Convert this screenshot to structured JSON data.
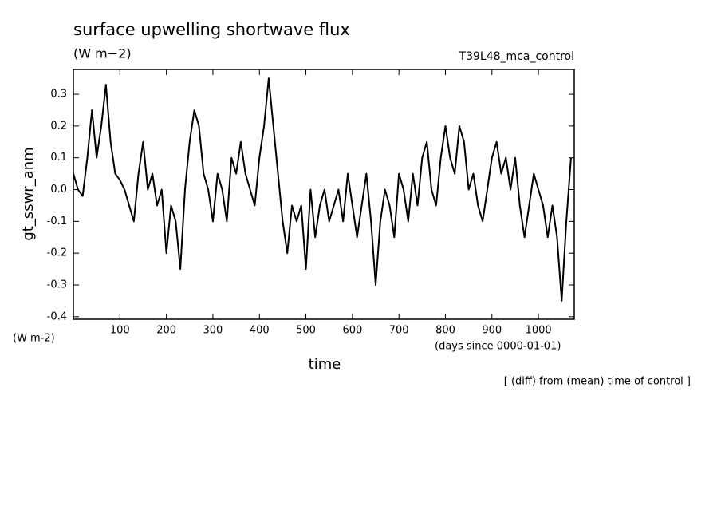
{
  "chart_data": {
    "type": "line",
    "title": "surface upwelling shortwave flux",
    "subtitle": "(W m−2)",
    "experiment": "T39L48_mca_control",
    "y_label": "gt_sswr_anm",
    "y_unit": "(W m-2)",
    "x_label": "time",
    "x_unit": "(days since 0000-01-01)",
    "note": "[ (diff) from (mean) time of control ]",
    "xlim": [
      0,
      1077
    ],
    "ylim": [
      -0.408,
      0.378
    ],
    "xticks": [
      100,
      200,
      300,
      400,
      500,
      600,
      700,
      800,
      900,
      1000
    ],
    "yticks": [
      -0.4,
      -0.3,
      -0.2,
      -0.1,
      {
        "value": 0,
        "label": "0.0"
      },
      0.1,
      0.2,
      0.3
    ],
    "series": [
      {
        "color": "#000000",
        "x": [
          0,
          10,
          20,
          30,
          40,
          50,
          60,
          70,
          80,
          90,
          100,
          110,
          120,
          130,
          140,
          150,
          160,
          170,
          180,
          190,
          200,
          210,
          220,
          230,
          240,
          250,
          260,
          270,
          280,
          290,
          300,
          310,
          320,
          330,
          340,
          350,
          360,
          370,
          380,
          390,
          400,
          410,
          420,
          430,
          440,
          450,
          460,
          470,
          480,
          490,
          500,
          510,
          520,
          530,
          540,
          550,
          560,
          570,
          580,
          590,
          600,
          610,
          620,
          630,
          640,
          650,
          660,
          670,
          680,
          690,
          700,
          710,
          720,
          730,
          740,
          750,
          760,
          770,
          780,
          790,
          800,
          810,
          820,
          830,
          840,
          850,
          860,
          870,
          880,
          890,
          900,
          910,
          920,
          930,
          940,
          950,
          960,
          970,
          980,
          990,
          1000,
          1010,
          1020,
          1030,
          1040,
          1050,
          1060,
          1070
        ],
        "values": [
          0.05,
          0.0,
          -0.02,
          0.1,
          0.25,
          0.1,
          0.2,
          0.33,
          0.15,
          0.05,
          0.03,
          0.0,
          -0.05,
          -0.1,
          0.05,
          0.15,
          0.0,
          0.05,
          -0.05,
          0.0,
          -0.2,
          -0.05,
          -0.1,
          -0.25,
          0.0,
          0.15,
          0.25,
          0.2,
          0.05,
          0.0,
          -0.1,
          0.05,
          0.0,
          -0.1,
          0.1,
          0.05,
          0.15,
          0.05,
          0.0,
          -0.05,
          0.1,
          0.2,
          0.35,
          0.2,
          0.05,
          -0.1,
          -0.2,
          -0.05,
          -0.1,
          -0.05,
          -0.25,
          0.0,
          -0.15,
          -0.05,
          0.0,
          -0.1,
          -0.05,
          0.0,
          -0.1,
          0.05,
          -0.05,
          -0.15,
          -0.05,
          0.05,
          -0.1,
          -0.3,
          -0.1,
          0.0,
          -0.05,
          -0.15,
          0.05,
          0.0,
          -0.1,
          0.05,
          -0.05,
          0.1,
          0.15,
          0.0,
          -0.05,
          0.1,
          0.2,
          0.1,
          0.05,
          0.2,
          0.15,
          0.0,
          0.05,
          -0.05,
          -0.1,
          0.0,
          0.1,
          0.15,
          0.05,
          0.1,
          0.0,
          0.1,
          -0.05,
          -0.15,
          -0.05,
          0.05,
          0.0,
          -0.05,
          -0.15,
          -0.05,
          -0.15,
          -0.35,
          -0.1,
          0.1
        ]
      }
    ]
  }
}
